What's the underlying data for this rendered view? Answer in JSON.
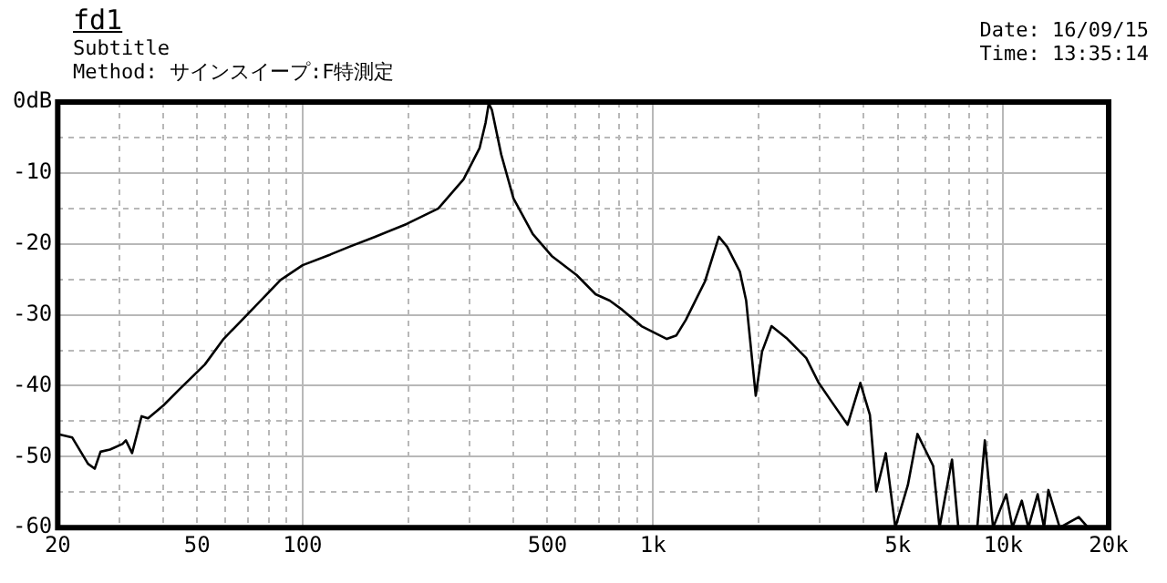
{
  "chart_data": {
    "type": "line",
    "title": "fd1",
    "subtitle": "Subtitle\nMethod: サインスイープ:F特測定",
    "annotations": [
      "Date: 16/09/15",
      "Time: 13:35:14"
    ],
    "log": "x",
    "grid": true,
    "legend": false,
    "marker": "none",
    "line_style": "solid",
    "xlim": [
      20,
      20000
    ],
    "ylim": [
      -60,
      0
    ],
    "xticks": [
      20,
      {
        "value": 30,
        "label": null
      },
      {
        "value": 40,
        "label": null
      },
      50,
      {
        "value": 60,
        "label": null
      },
      {
        "value": 70,
        "label": null
      },
      {
        "value": 80,
        "label": null
      },
      {
        "value": 90,
        "label": null
      },
      100,
      {
        "value": 200,
        "label": null
      },
      {
        "value": 300,
        "label": null
      },
      {
        "value": 400,
        "label": null
      },
      500,
      {
        "value": 600,
        "label": null
      },
      {
        "value": 700,
        "label": null
      },
      {
        "value": 800,
        "label": null
      },
      {
        "value": 900,
        "label": null
      },
      {
        "value": 1000,
        "label": "1k"
      },
      {
        "value": 2000,
        "label": null
      },
      {
        "value": 3000,
        "label": null
      },
      {
        "value": 4000,
        "label": null
      },
      {
        "value": 5000,
        "label": "5k"
      },
      {
        "value": 6000,
        "label": null
      },
      {
        "value": 7000,
        "label": null
      },
      {
        "value": 8000,
        "label": null
      },
      {
        "value": 9000,
        "label": null
      },
      {
        "value": 10000,
        "label": "10k"
      },
      {
        "value": 20000,
        "label": "20k"
      }
    ],
    "yticks": [
      {
        "value": 0,
        "label": "0dB"
      },
      {
        "value": -5,
        "label": null
      },
      -10,
      {
        "value": -15,
        "label": null
      },
      -20,
      {
        "value": -25,
        "label": null
      },
      -30,
      {
        "value": -35,
        "label": null
      },
      -40,
      {
        "value": -45,
        "label": null
      },
      -50,
      {
        "value": -55,
        "label": null
      },
      -60
    ],
    "series": [
      {
        "color": "#000000",
        "x": [
          20,
          22,
          24.4,
          25.5,
          26.5,
          28.2,
          30.6,
          31.3,
          32.6,
          34.7,
          36.2,
          40,
          44.5,
          52.6,
          59.5,
          70,
          86.5,
          100,
          120,
          136,
          161,
          198,
          244,
          288,
          320,
          333,
          340,
          347,
          369,
          400,
          454,
          514,
          606,
          686,
          753,
          818,
          928,
          1096,
          1167,
          1242,
          1408,
          1543,
          1629,
          1771,
          1846,
          1966,
          2049,
          2181,
          2421,
          2741,
          2974,
          3243,
          3596,
          3910,
          4163,
          4342,
          4622,
          4921,
          5344,
          5691,
          6312,
          6580,
          7143,
          7446,
          8433,
          8864,
          9356,
          10200,
          10630,
          11300,
          11800,
          12540,
          13080,
          13460,
          14500,
          16430,
          17470
        ],
        "values": [
          -46.8,
          -47.3,
          -51,
          -51.7,
          -49.3,
          -49,
          -48.2,
          -47.7,
          -49.5,
          -44.3,
          -44.6,
          -42.8,
          -40.5,
          -37,
          -33.4,
          -29.8,
          -25.1,
          -23,
          -21.5,
          -20.4,
          -19,
          -17.2,
          -15,
          -10.9,
          -6.5,
          -2.9,
          -0.2,
          -1.1,
          -7.4,
          -13.6,
          -18.6,
          -21.7,
          -24.4,
          -27.1,
          -28,
          -29.3,
          -31.6,
          -33.4,
          -32.9,
          -30.7,
          -25.3,
          -19,
          -20.4,
          -23.9,
          -28,
          -41.4,
          -35.2,
          -31.6,
          -33.4,
          -36.1,
          -39.6,
          -42.3,
          -45.5,
          -39.6,
          -44.1,
          -54.9,
          -49.5,
          -60,
          -54,
          -46.8,
          -51.3,
          -60,
          -50.4,
          -60,
          -60,
          -47.7,
          -60,
          -55.3,
          -60,
          -56.2,
          -60,
          -55.3,
          -60,
          -54.7,
          -60,
          -58.5,
          -60
        ]
      }
    ]
  }
}
